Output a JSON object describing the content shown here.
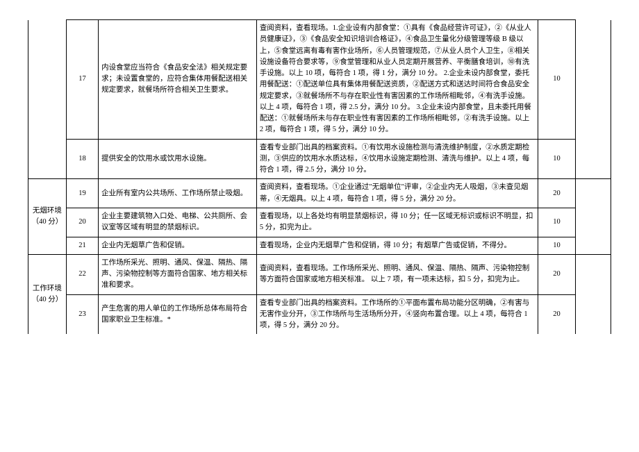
{
  "categories": {
    "smoke_free": "无烟环境（40 分）",
    "work_env": "工作环境（40 分）"
  },
  "rows": [
    {
      "num": "17",
      "req": "内设食堂应当符合《食品安全法》相关规定要求；未设置食堂的，应符合集体用餐配送相关规定要求，就餐场所符合相关卫生要求。",
      "det": "查阅资料，查看现场。1.企业设有内部食堂：①具有《食品经营许可证》，②《从业人员健康证》，③《食品安全知识培训合格证》，④食品卫生量化分级管理等级 B 级以上，⑤食堂远离有毒有害作业场所，⑥人员管理规范，⑦从业人员个人卫生，⑧相关设施设备符合要求等，⑨食堂管理和从业人员定期开展营养、平衡膳食培训，⑩有洗手设施。以上 10 项，每符合 1 项，得 1 分，满分 10 分。\n2.企业未设内部食堂，委托用餐配送：①配送单位具有集体用餐配送资质，②配送方式和送达时间符合食品安全规定要求，③就餐场所不与存在职业性有害因素的工作场所相毗邻，④有洗手设施。以上 4 项，每符合 1 项，得 2.5 分，满分 10 分。\n3.企业未设内部食堂，且未委托用餐配送：①就餐场所未与存在职业性有害因素的工作场所相毗邻，②有洗手设施。以上 2 项，每符合 1 项，得 5 分，满分 10 分。",
      "score": "10"
    },
    {
      "num": "18",
      "req": "提供安全的饮用水或饮用水设施。",
      "det": "查看专业部门出具的档案资料。①有饮用水设施检测与清洗维护制度，②水质定期检测，③供应的饮用水水质达标，④饮用水设施定期检测、清洗与维护。以上 4 项，每符合 1 项，得 2.5 分，满分 10 分。",
      "score": "10"
    },
    {
      "num": "19",
      "req": "企业所有室内公共场所、工作场所禁止吸烟。",
      "det": "查阅资料，查看现场。①企业通过\"无烟单位\"评审，②企业内无人吸烟，③未查见烟蒂，④无烟具。以上 4 项，每符合 1 项，得 5 分，满分 20 分。",
      "score": "20"
    },
    {
      "num": "20",
      "req": "企业主要建筑物入口处、电梯、公共厕所、会议室等区域有明显的禁烟标识。",
      "det": "查看现场，以上各处均有明显禁烟标识，得 10 分；任一区域无标识或标识不明显，扣 5 分，扣完为止。",
      "score": "10"
    },
    {
      "num": "21",
      "req": "企业内无烟草广告和促销。",
      "det": "查看现场，企业内无烟草广告和促销，得 10 分；有烟草广告或促销，不得分。",
      "score": "10"
    },
    {
      "num": "22",
      "req": "工作场所采光、照明、通风、保温、隔热、隔声、污染物控制等方面符合国家、地方相关标准和要求。",
      "det": "查阅资料，查看现场。工作场所采光、照明、通风、保温、隔热、隔声、污染物控制等方面符合国家或地方相关标准。\n以上 7 项，有一项未达标，扣 5 分，扣完为止。",
      "score": "20"
    },
    {
      "num": "23",
      "req": "产生危害的用人单位的工作场所总体布局符合国家职业卫生标准。*",
      "det": "查看专业部门出具的档案资料。工作场所的①平面布置布局功能分区明确，②有害与无害作业分开，③工作场所与生活场所分开，④竖向布置合理。以上 4 项，每符合 1 项，得 5 分，满分 20 分。",
      "score": "20"
    }
  ]
}
